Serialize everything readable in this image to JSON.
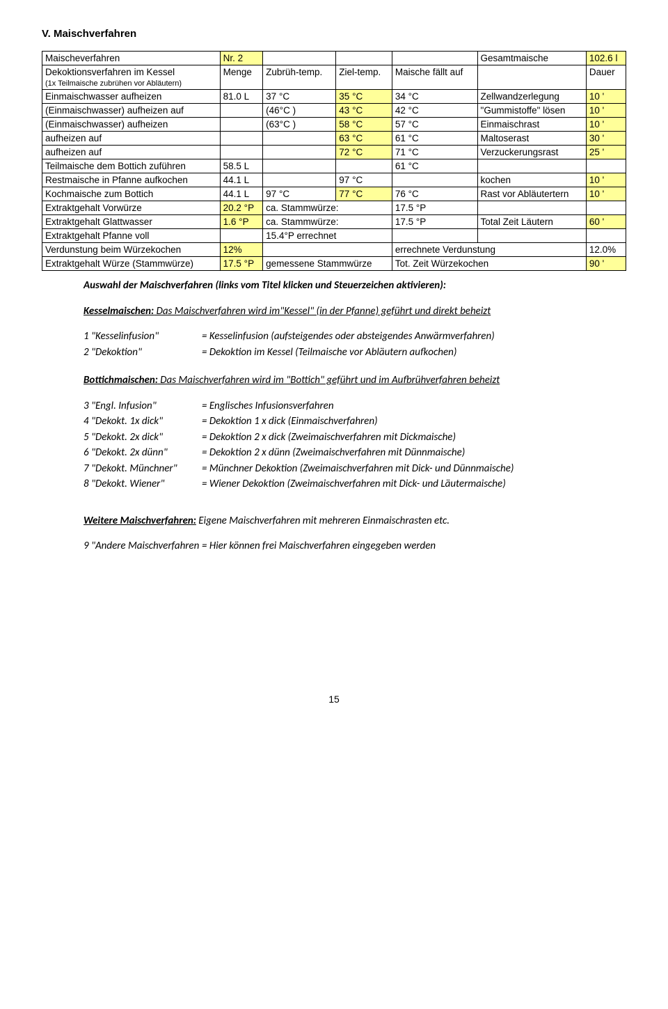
{
  "heading": "V.  Maischverfahren",
  "table": {
    "r0": {
      "c0": "Maischeverfahren",
      "c1": "Nr. 2",
      "c2": "",
      "c3": "",
      "c4": "",
      "c5": "Gesamtmaische",
      "c6": "102.6 l"
    },
    "r1": {
      "c0": "Dekoktionsverfahren im Kessel",
      "c0b": "(1x Teilmaische zubrühen vor Abläutern)",
      "c1": "Menge",
      "c2": "Zubrüh-temp.",
      "c3": "Ziel-temp.",
      "c4": "Maische fällt auf",
      "c5": "",
      "c6": "Dauer"
    },
    "r2": {
      "c0": "Einmaischwasser aufheizen",
      "c1": "81.0 L",
      "c2": "37 °C",
      "c3": "35 °C",
      "c4": "34 °C",
      "c5": "Zellwandzerlegung",
      "c6": "10 '"
    },
    "r3": {
      "c0": "(Einmaischwasser) aufheizen auf",
      "c1": "",
      "c2": "(46°C )",
      "c3": "43 °C",
      "c4": "42 °C",
      "c5": "\"Gummistoffe\" lösen",
      "c6": "10 '"
    },
    "r4": {
      "c0": "(Einmaischwasser) aufheizen",
      "c1": "",
      "c2": "(63°C )",
      "c3": "58 °C",
      "c4": "57 °C",
      "c5": "Einmaischrast",
      "c6": "10 '"
    },
    "r5": {
      "c0": "aufheizen auf",
      "c1": "",
      "c2": "",
      "c3": "63 °C",
      "c4": "61 °C",
      "c5": "Maltoserast",
      "c6": "30 '"
    },
    "r6": {
      "c0": "aufheizen auf",
      "c1": "",
      "c2": "",
      "c3": "72 °C",
      "c4": "71 °C",
      "c5": "Verzuckerungsrast",
      "c6": "25 '"
    },
    "r7": {
      "c0": "Teilmaische dem Bottich zuführen",
      "c1": "58.5 L",
      "c2": "",
      "c3": "",
      "c4": "61 °C",
      "c5": "",
      "c6": ""
    },
    "r8": {
      "c0": "Restmaische in Pfanne aufkochen",
      "c1": "44.1 L",
      "c2": "",
      "c3": "97 °C",
      "c4": "",
      "c5": "kochen",
      "c6": "10 '"
    },
    "r9": {
      "c0": "Kochmaische zum Bottich",
      "c1": "44.1 L",
      "c2": "97 °C",
      "c3": "77 °C",
      "c4": "76 °C",
      "c5": "Rast vor Abläutertern",
      "c6": "10 '"
    },
    "r10": {
      "c0": "Extraktgehalt Vorwürze",
      "c1": "20.2 °P",
      "c2": "ca. Stammwürze:",
      "c3": "17.5 °P",
      "c4": "",
      "c5": ""
    },
    "r11": {
      "c0": "Extraktgehalt Glattwasser",
      "c1": "1.6 °P",
      "c2": "ca. Stammwürze:",
      "c3": "17.5 °P",
      "c4": "Total Zeit Läutern",
      "c5": "60 '"
    },
    "r12": {
      "c0": "Extraktgehalt Pfanne voll",
      "c1": "",
      "c2": "15.4°P errechnet",
      "c3": "",
      "c4": "",
      "c5": ""
    },
    "r13": {
      "c0": "Verdunstung beim Würzekochen",
      "c1": "12%",
      "c2": "",
      "c3": "errechnete Verdunstung",
      "c4": "12.0%"
    },
    "r14": {
      "c0": "Extraktgehalt Würze (Stammwürze)",
      "c1": "17.5 °P",
      "c2": "gemessene Stammwürze",
      "c3": "Tot. Zeit Würzekochen",
      "c4": "90 '"
    }
  },
  "intro": "Auswahl der Maischverfahren (links vom Titel klicken und Steuerzeichen aktivieren):",
  "kessel": {
    "title": "Kesselmaischen:",
    "desc": " Das Maischverfahren wird im\"Kessel\" (in der Pfanne) geführt und direkt beheizt",
    "rows": [
      {
        "k": "1 \"Kesselinfusion\"",
        "v": "= Kesselinfusion (aufsteigendes oder absteigendes Anwärmverfahren)"
      },
      {
        "k": "2 \"Dekoktion\"",
        "v": "= Dekoktion im Kessel (Teilmaische vor Abläutern aufkochen)"
      }
    ]
  },
  "bottich": {
    "title": "Bottichmaischen:",
    "desc": " Das Maischverfahren wird im \"Bottich\" geführt und im Aufbrühverfahren beheizt",
    "rows": [
      {
        "k": "3 \"Engl. Infusion\"",
        "v": "= Englisches Infusionsverfahren"
      },
      {
        "k": "4 \"Dekokt. 1x dick\"",
        "v": "= Dekoktion 1 x dick (Einmaischverfahren)"
      },
      {
        "k": "5 \"Dekokt. 2x dick\"",
        "v": "= Dekoktion 2 x dick (Zweimaischverfahren mit Dickmaische)"
      },
      {
        "k": "6 \"Dekokt. 2x dünn\"",
        "v": "= Dekoktion 2 x dünn (Zweimaischverfahren mit Dünnmaische)"
      },
      {
        "k": "7 \"Dekokt. Münchner\"",
        "v": "= Münchner Dekoktion (Zweimaischverfahren  mit Dick- und Dünnmaische)"
      },
      {
        "k": "8 \"Dekokt. Wiener\"",
        "v": "= Wiener Dekoktion (Zweimaischverfahren mit Dick- und Läutermaische)"
      }
    ]
  },
  "weitere": {
    "title": "Weitere Maischverfahren:",
    "desc": " Eigene Maischverfahren mit mehreren Einmaischrasten etc.",
    "row": {
      "k": "9 \"Andere Maischverfahren",
      "v": "= Hier können frei Maischverfahren eingegeben werden"
    }
  },
  "page": "15"
}
